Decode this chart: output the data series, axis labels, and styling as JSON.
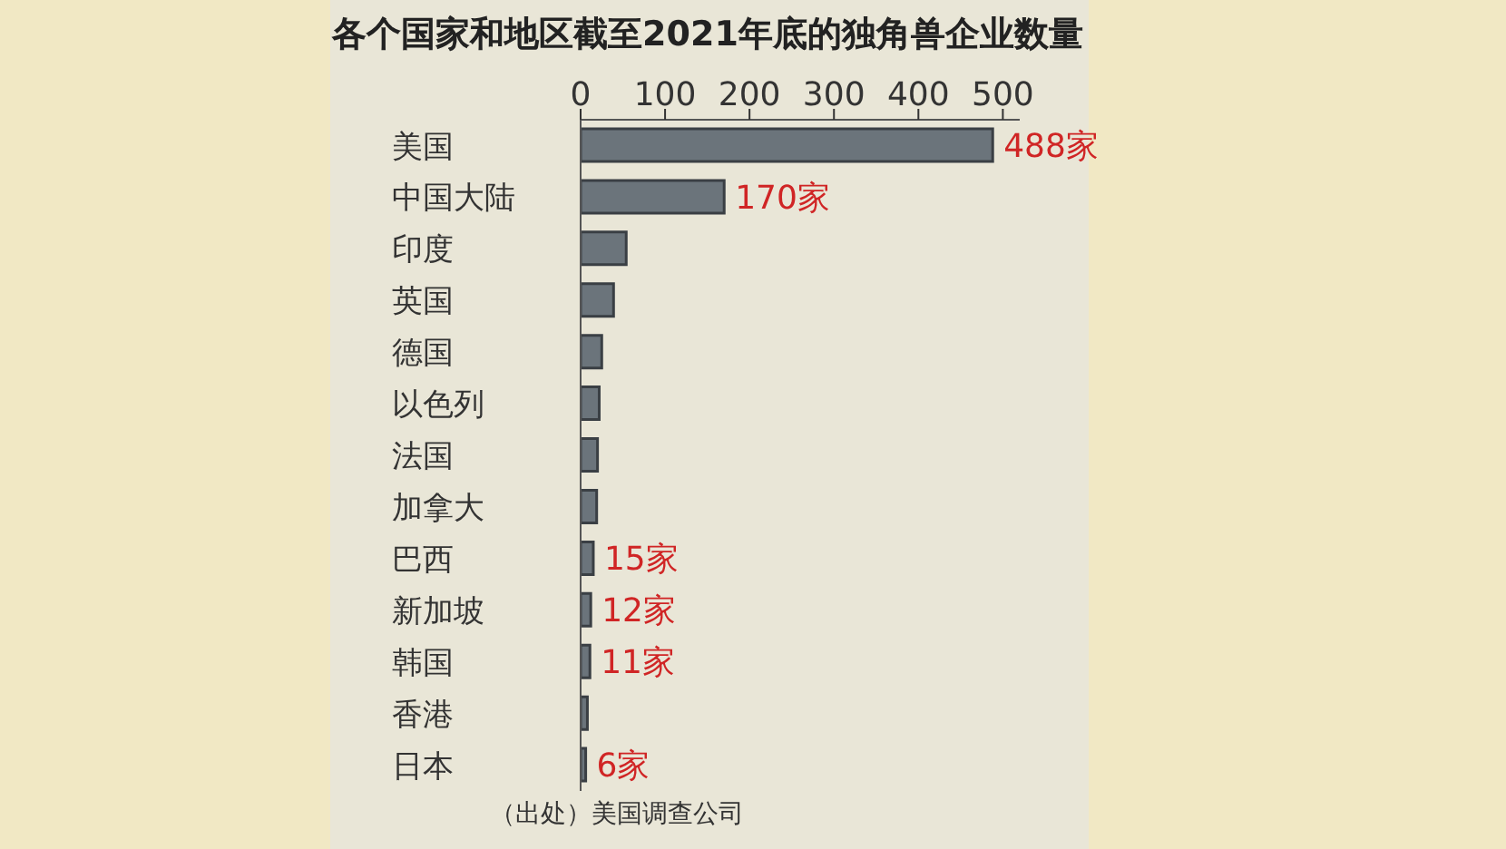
{
  "chart_data": {
    "type": "bar",
    "orientation": "horizontal",
    "title": "各个国家和地区截至2021年底的独角兽企业数量",
    "categories": [
      "美国",
      "中国大陆",
      "印度",
      "英国",
      "德国",
      "以色列",
      "法国",
      "加拿大",
      "巴西",
      "新加坡",
      "韩国",
      "香港",
      "日本"
    ],
    "values": [
      488,
      170,
      54,
      39,
      25,
      22,
      20,
      19,
      15,
      12,
      11,
      8,
      6
    ],
    "value_labels": [
      "488家",
      "170家",
      null,
      null,
      null,
      null,
      null,
      null,
      "15家",
      "12家",
      "11家",
      null,
      "6家"
    ],
    "color": "#6b747b",
    "xlim": [
      0,
      520
    ],
    "xticks": [
      0,
      100,
      200,
      300,
      400,
      500
    ],
    "annotations": [
      "（出处）美国调查公司"
    ]
  }
}
